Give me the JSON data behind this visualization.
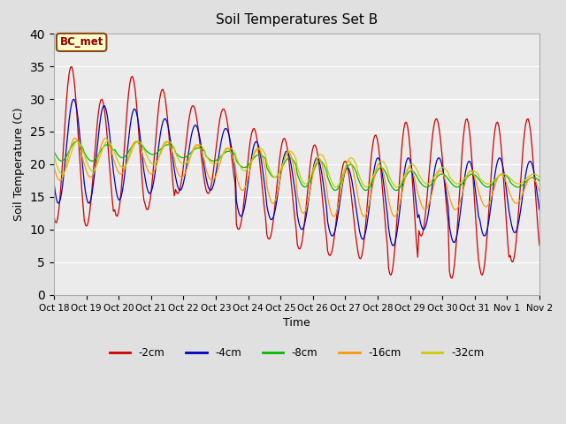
{
  "title": "Soil Temperatures Set B",
  "xlabel": "Time",
  "ylabel": "Soil Temperature (C)",
  "ylim": [
    0,
    40
  ],
  "annotation": "BC_met",
  "xtick_labels": [
    "Oct 18",
    "Oct 19",
    "Oct 20",
    "Oct 21",
    "Oct 22",
    "Oct 23",
    "Oct 24",
    "Oct 25",
    "Oct 26",
    "Oct 27",
    "Oct 28",
    "Oct 29",
    "Oct 30",
    "Oct 31",
    "Nov 1",
    "Nov 2"
  ],
  "series_labels": [
    "-2cm",
    "-4cm",
    "-8cm",
    "-16cm",
    "-32cm"
  ],
  "series_colors": [
    "#cc0000",
    "#0000bb",
    "#00bb00",
    "#ff9900",
    "#cccc00"
  ],
  "figsize": [
    6.4,
    4.8
  ],
  "dpi": 100,
  "background_color": "#e0e0e0",
  "plot_bg_color": "#ebebeb"
}
